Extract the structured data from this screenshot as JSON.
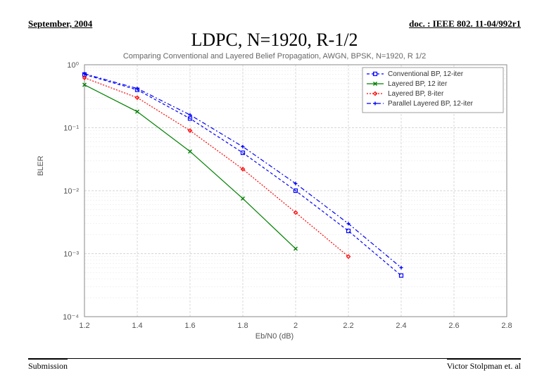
{
  "header": {
    "left": "September, 2004",
    "right": "doc. : IEEE 802. 11-04/992r1"
  },
  "footer": {
    "left": "Submission",
    "right": "Victor Stolpman et. al"
  },
  "title": "LDPC, N=1920, R-1/2",
  "chart": {
    "type": "line-scatter-semilogy",
    "title": "Comparing Conventional and Layered Belief Propagation, AWGN, BPSK, N=1920, R 1/2",
    "xlabel": "Eb/N0 (dB)",
    "ylabel": "BLER",
    "xlim": [
      1.2,
      2.8
    ],
    "xticks": [
      1.2,
      1.4,
      1.6,
      1.8,
      2.0,
      2.2,
      2.4,
      2.6,
      2.8
    ],
    "ylim_log10": [
      -4,
      0
    ],
    "ytick_exp": [
      0,
      -1,
      -2,
      -3,
      -4
    ],
    "ytick_labels": [
      "10⁰",
      "10⁻¹",
      "10⁻²",
      "10⁻³",
      "10⁻⁴"
    ],
    "grid_color": "#c8c8c8",
    "minor_grid_color": "#e4e4e4",
    "axis_color": "#888888",
    "background_color": "#ffffff",
    "line_width": 1.2,
    "marker_size": 5,
    "tick_fontsize": 11,
    "legend": {
      "position": "top-right",
      "fontsize": 10,
      "border_color": "#888888",
      "bg": "#ffffff"
    },
    "series": [
      {
        "name": "Conventional BP, 12-iter",
        "color": "#0000ff",
        "marker": "square",
        "dash": "4 3",
        "x": [
          1.2,
          1.4,
          1.6,
          1.8,
          2.0,
          2.2,
          2.4
        ],
        "y": [
          0.7,
          0.4,
          0.14,
          0.04,
          0.01,
          0.0023,
          0.00045
        ]
      },
      {
        "name": "Layered BP, 12 iter",
        "color": "#008000",
        "marker": "x",
        "dash": "",
        "x": [
          1.2,
          1.4,
          1.6,
          1.8,
          2.0
        ],
        "y": [
          0.48,
          0.18,
          0.042,
          0.0075,
          0.0012
        ]
      },
      {
        "name": "Layered BP, 8-iter",
        "color": "#ff0000",
        "marker": "diamond",
        "dash": "2 2",
        "x": [
          1.2,
          1.4,
          1.6,
          1.8,
          2.0,
          2.2
        ],
        "y": [
          0.62,
          0.3,
          0.09,
          0.022,
          0.0045,
          0.0009
        ]
      },
      {
        "name": "Parallel Layered BP, 12-iter",
        "color": "#0000ff",
        "marker": "plus",
        "dash": "6 3 2 3",
        "x": [
          1.2,
          1.4,
          1.6,
          1.8,
          2.0,
          2.2,
          2.4
        ],
        "y": [
          0.72,
          0.42,
          0.16,
          0.05,
          0.013,
          0.003,
          0.0006
        ]
      }
    ]
  }
}
